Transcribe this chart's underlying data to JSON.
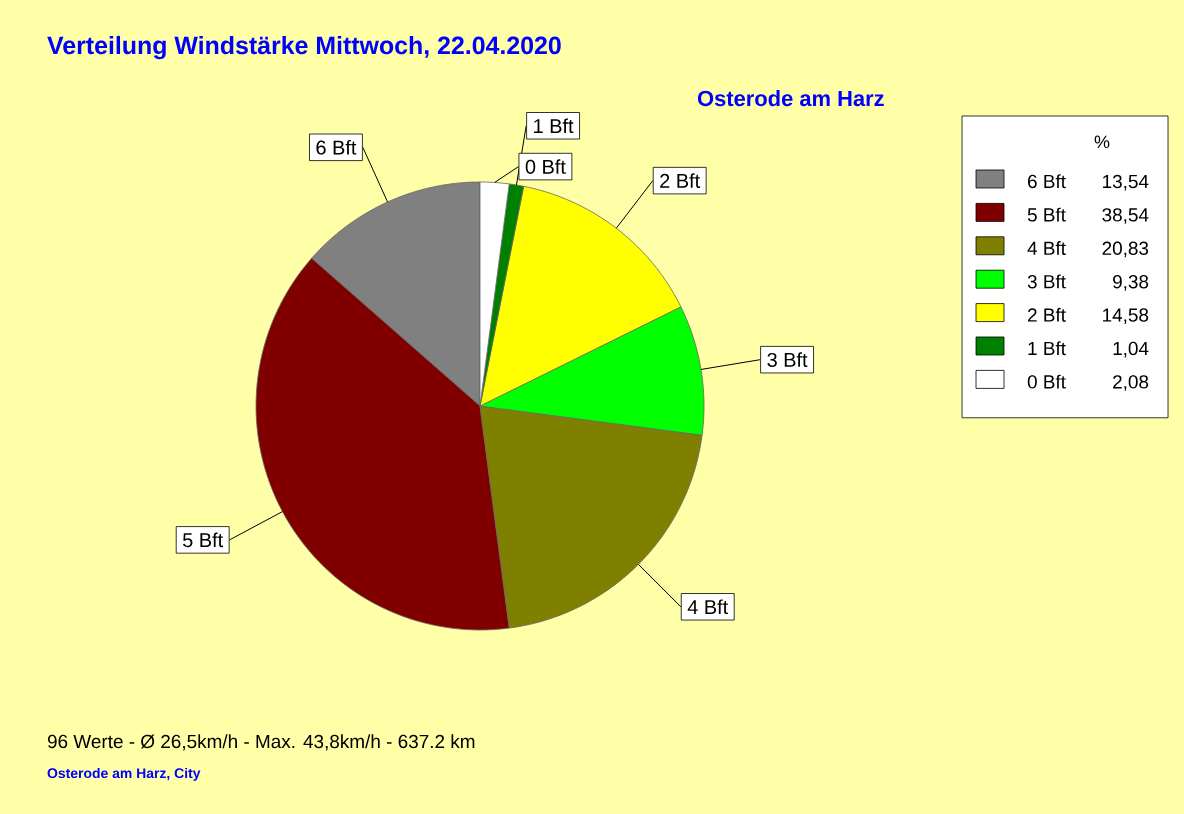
{
  "chart_data": {
    "type": "pie",
    "title": "Verteilung Windstärke  Mittwoch, 22.04.2020",
    "subtitle": "Osterode am Harz",
    "legend_title": "%",
    "categories": [
      "6 Bft",
      "5 Bft",
      "4 Bft",
      "3 Bft",
      "2 Bft",
      "1 Bft",
      "0 Bft"
    ],
    "values": [
      13.54,
      38.54,
      20.83,
      9.38,
      14.58,
      1.04,
      2.08
    ],
    "colors": [
      "#808080",
      "#800000",
      "#808000",
      "#00ff00",
      "#ffff00",
      "#008000",
      "#ffffff"
    ],
    "value_labels": [
      "13,54",
      "38,54",
      "20,83",
      "9,38",
      "14,58",
      "1,04",
      "2,08"
    ],
    "legend": "right",
    "annotations": [
      "96 Werte  -  Ø 26,5km/h  -  Max. 43,8km/h  -  637.2 km",
      "Osterode am Harz, City"
    ]
  }
}
